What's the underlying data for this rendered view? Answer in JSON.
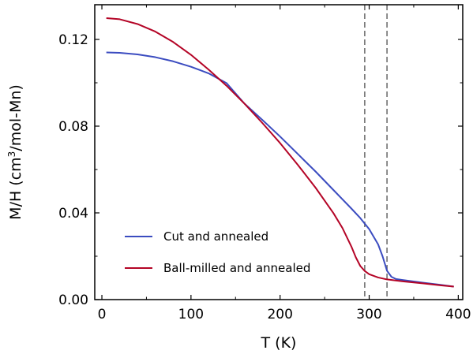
{
  "chart_data": {
    "type": "line",
    "xlabel": "T (K)",
    "ylabel": {
      "prefix": "M/H (cm",
      "superscript": "3",
      "suffix": "/mol-Mn)"
    },
    "xlim": [
      -8,
      405
    ],
    "ylim": [
      0,
      0.136
    ],
    "xticks": [
      {
        "value": 0,
        "label": "0"
      },
      {
        "value": 100,
        "label": "100"
      },
      {
        "value": 200,
        "label": "200"
      },
      {
        "value": 300,
        "label": "300"
      },
      {
        "value": 400,
        "label": "400"
      }
    ],
    "yticks": [
      {
        "value": 0,
        "label": "0.00"
      },
      {
        "value": 0.04,
        "label": "0.04"
      },
      {
        "value": 0.08,
        "label": "0.08"
      },
      {
        "value": 0.12,
        "label": "0.12"
      }
    ],
    "grid": false,
    "legend_position": "lower-left",
    "vlines": [
      {
        "x": 295,
        "style": "dashed",
        "color": "#707070"
      },
      {
        "x": 320,
        "style": "dashed",
        "color": "#707070"
      }
    ],
    "series": [
      {
        "name": "Cut and annealed",
        "color": "#3b4cc0",
        "x": [
          5,
          20,
          40,
          60,
          80,
          100,
          120,
          140,
          160,
          180,
          200,
          220,
          240,
          260,
          280,
          290,
          300,
          310,
          315,
          318,
          320,
          325,
          330,
          340,
          360,
          380,
          395
        ],
        "y": [
          0.114,
          0.1138,
          0.1131,
          0.1118,
          0.1099,
          0.1074,
          0.1043,
          0.0998,
          0.0904,
          0.0829,
          0.0752,
          0.0671,
          0.059,
          0.0505,
          0.042,
          0.0376,
          0.0325,
          0.0255,
          0.02,
          0.016,
          0.0133,
          0.0105,
          0.0095,
          0.0089,
          0.0078,
          0.0068,
          0.006
        ]
      },
      {
        "name": "Ball-milled and annealed",
        "color": "#b40426",
        "x": [
          5,
          20,
          40,
          60,
          80,
          100,
          120,
          140,
          160,
          180,
          200,
          220,
          240,
          260,
          270,
          280,
          285,
          290,
          295,
          300,
          310,
          320,
          340,
          360,
          380,
          395
        ],
        "y": [
          0.1298,
          0.1293,
          0.1271,
          0.1236,
          0.1188,
          0.1129,
          0.106,
          0.0986,
          0.0904,
          0.0815,
          0.0722,
          0.0621,
          0.0515,
          0.0398,
          0.033,
          0.0245,
          0.0195,
          0.0155,
          0.0132,
          0.0117,
          0.0102,
          0.0093,
          0.0083,
          0.0075,
          0.0066,
          0.006
        ]
      }
    ]
  }
}
